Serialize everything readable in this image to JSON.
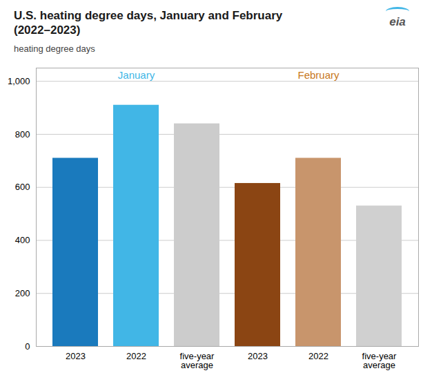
{
  "chart_data": {
    "type": "bar",
    "title": "U.S. heating degree days, January and February\n(2022–2023)",
    "subtitle": "heating degree days",
    "categories": [
      "2023",
      "2022",
      "five-year\naverage",
      "2023",
      "2022",
      "five-year\naverage"
    ],
    "values": [
      710,
      910,
      840,
      615,
      710,
      530
    ],
    "colors": [
      "#1a7abd",
      "#41b6e6",
      "#cccccc",
      "#8b4513",
      "#c8956c",
      "#d0d0d0"
    ],
    "ylim": [
      0,
      1050
    ],
    "yticks": [
      0,
      200,
      400,
      600,
      800,
      {
        "value": 1000,
        "label": "1,000"
      }
    ],
    "grid": true,
    "annotations": [
      {
        "text": "January",
        "color": "#41b6e6"
      },
      {
        "text": "February",
        "color": "#c87820"
      },
      {
        "text": "eia",
        "color": "#555555"
      }
    ]
  }
}
